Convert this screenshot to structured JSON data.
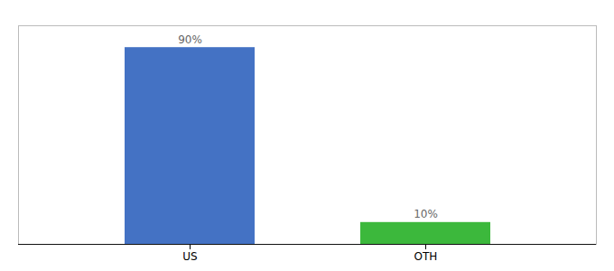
{
  "chart_data": {
    "type": "bar",
    "categories": [
      "US",
      "OTH"
    ],
    "values": [
      90,
      10
    ],
    "value_labels": [
      "90%",
      "10%"
    ],
    "colors": [
      "#4472c4",
      "#3cb83c"
    ],
    "ylim": [
      0,
      100
    ],
    "data_labels": true,
    "tick_labels": "x"
  }
}
